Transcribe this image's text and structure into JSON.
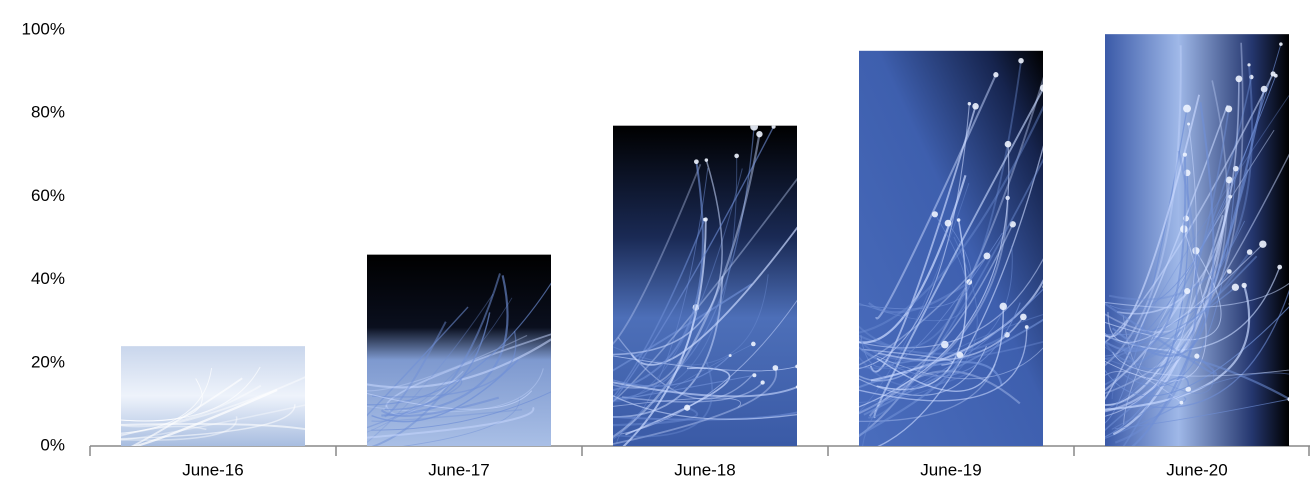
{
  "chart_data": {
    "type": "bar",
    "categories": [
      "June-16",
      "June-17",
      "June-18",
      "June-19",
      "June-20"
    ],
    "values": [
      24,
      46,
      77,
      95,
      99
    ],
    "ylim": [
      0,
      100
    ],
    "yticks": [
      {
        "value": 0,
        "label": "0%"
      },
      {
        "value": 20,
        "label": "20%"
      },
      {
        "value": 40,
        "label": "40%"
      },
      {
        "value": 60,
        "label": "60%"
      },
      {
        "value": 80,
        "label": "80%"
      },
      {
        "value": 100,
        "label": "100%"
      }
    ],
    "grid": false
  }
}
